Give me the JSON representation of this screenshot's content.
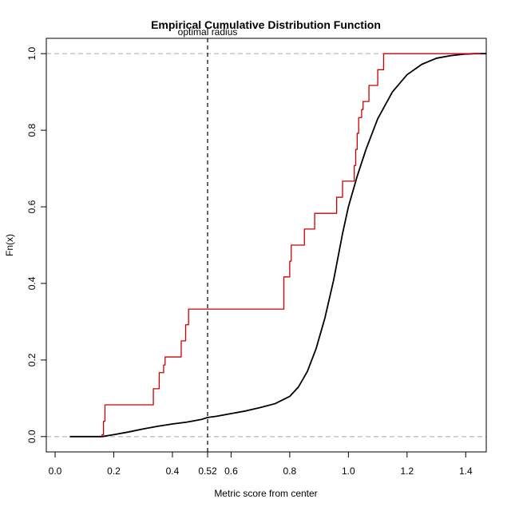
{
  "chart_data": {
    "type": "line",
    "title": "Empirical Cumulative Distribution Function",
    "xlabel": "Metric score from center",
    "ylabel": "Fn(x)",
    "xlim": [
      -0.03,
      1.47
    ],
    "ylim": [
      -0.04,
      1.04
    ],
    "xticks": [
      0.0,
      0.2,
      0.4,
      0.52,
      0.6,
      0.8,
      1.0,
      1.2,
      1.4
    ],
    "xtick_labels": [
      "0.0",
      "0.2",
      "0.4",
      "0.52",
      "0.6",
      "0.8",
      "1.0",
      "1.2",
      "1.4"
    ],
    "yticks": [
      0.0,
      0.2,
      0.4,
      0.6,
      0.8,
      1.0
    ],
    "ytick_labels": [
      "0.0",
      "0.2",
      "0.4",
      "0.6",
      "0.8",
      "1.0"
    ],
    "hlines": [
      0.0,
      1.0
    ],
    "vline": {
      "x": 0.52,
      "label": "optimal radius"
    },
    "series": [
      {
        "color": "#000000",
        "style": "smooth",
        "x": [
          0.05,
          0.12,
          0.16,
          0.2,
          0.25,
          0.3,
          0.35,
          0.4,
          0.45,
          0.5,
          0.52,
          0.55,
          0.6,
          0.65,
          0.7,
          0.75,
          0.8,
          0.83,
          0.86,
          0.89,
          0.92,
          0.95,
          0.98,
          1.0,
          1.03,
          1.06,
          1.1,
          1.15,
          1.2,
          1.25,
          1.3,
          1.35,
          1.4,
          1.43,
          1.47
        ],
        "y": [
          0.0,
          0.0,
          0.0,
          0.005,
          0.012,
          0.02,
          0.027,
          0.033,
          0.038,
          0.045,
          0.05,
          0.053,
          0.06,
          0.067,
          0.076,
          0.086,
          0.105,
          0.13,
          0.17,
          0.23,
          0.31,
          0.41,
          0.53,
          0.6,
          0.68,
          0.75,
          0.83,
          0.9,
          0.945,
          0.972,
          0.988,
          0.995,
          0.999,
          1.0,
          1.0
        ]
      },
      {
        "color": "#cc0000",
        "style": "step",
        "x": [
          0.16,
          0.165,
          0.17,
          0.335,
          0.355,
          0.37,
          0.375,
          0.43,
          0.445,
          0.455,
          0.78,
          0.8,
          0.805,
          0.85,
          0.885,
          0.96,
          0.98,
          1.02,
          1.025,
          1.03,
          1.035,
          1.045,
          1.05,
          1.07,
          1.1,
          1.12
        ],
        "y": [
          0.005,
          0.04,
          0.083,
          0.125,
          0.167,
          0.187,
          0.208,
          0.25,
          0.292,
          0.333,
          0.417,
          0.458,
          0.5,
          0.542,
          0.583,
          0.625,
          0.667,
          0.708,
          0.75,
          0.792,
          0.833,
          0.854,
          0.875,
          0.917,
          0.958,
          1.0
        ],
        "x_end": 1.45
      }
    ]
  }
}
